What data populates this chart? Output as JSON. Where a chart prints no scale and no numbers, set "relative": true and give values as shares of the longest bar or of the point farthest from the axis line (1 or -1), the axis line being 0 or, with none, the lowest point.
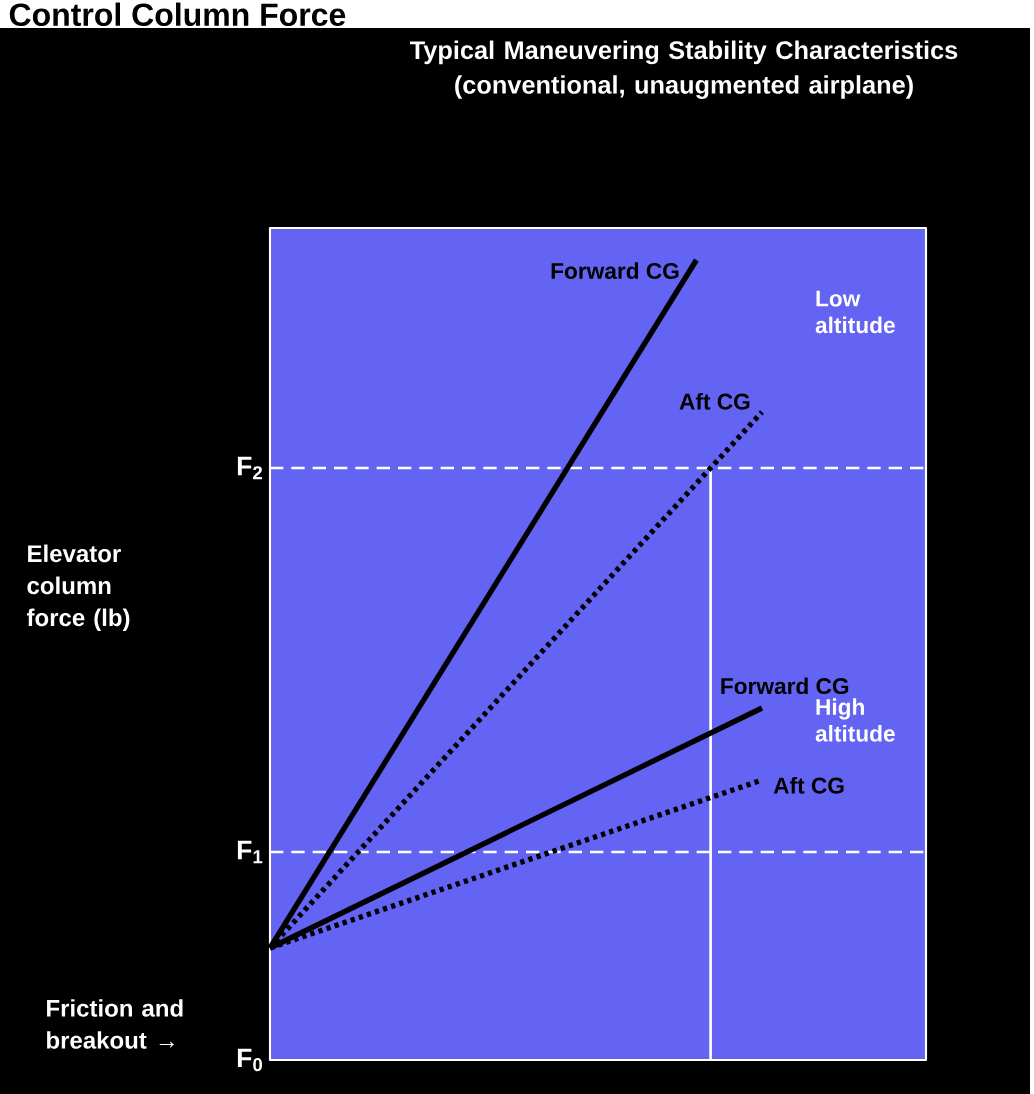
{
  "chart_data": {
    "type": "line",
    "relative": true,
    "title": "Control Column Force",
    "subtitle": "Typical Maneuvering Stability Characteristics (conventional, unaugmented airplane)",
    "categories": [
      null,
      null,
      null,
      null,
      null,
      null,
      null,
      null,
      null,
      null,
      null,
      null,
      null,
      null,
      null,
      null,
      null,
      null,
      null,
      null,
      null
    ],
    "series": [
      {
        "name": "Forward CG",
        "color": "#000000",
        "line_style": "solid",
        "values": [
          0.14,
          null,
          null,
          null,
          null,
          null,
          null,
          null,
          null,
          null,
          null,
          null,
          null,
          1,
          null,
          null,
          null,
          null,
          null,
          null,
          null
        ]
      },
      {
        "name": "Aft CG",
        "color": "#000000",
        "line_style": "dotted",
        "values": [
          0.14,
          null,
          null,
          null,
          null,
          null,
          null,
          null,
          null,
          null,
          null,
          null,
          null,
          null,
          null,
          0.81,
          null,
          null,
          null,
          null,
          null
        ]
      },
      {
        "name": "Forward CG",
        "color": "#000000",
        "line_style": "solid",
        "values": [
          0.14,
          null,
          null,
          null,
          null,
          null,
          null,
          null,
          null,
          null,
          null,
          null,
          null,
          null,
          null,
          0.44,
          null,
          null,
          null,
          null,
          null
        ]
      },
      {
        "name": "Aft CG",
        "color": "#000000",
        "line_style": "dotted",
        "values": [
          0.14,
          null,
          null,
          null,
          null,
          null,
          null,
          null,
          null,
          null,
          null,
          null,
          null,
          null,
          null,
          0.35,
          null,
          null,
          null,
          null,
          null
        ]
      }
    ],
    "ref_lines": [
      {
        "axis": "y",
        "value": 0.26,
        "label": "F$_{1}$",
        "color": "#ffffff",
        "line_style": "dashed"
      },
      {
        "axis": "y",
        "value": 0.74,
        "label": "F$_{2}$",
        "color": "#ffffff",
        "line_style": "dashed"
      }
    ],
    "annotations": [
      "Low altitude",
      "High altitude",
      "Elevator column force (lb)",
      "Friction and breakout →",
      "F$_{0}$"
    ]
  }
}
